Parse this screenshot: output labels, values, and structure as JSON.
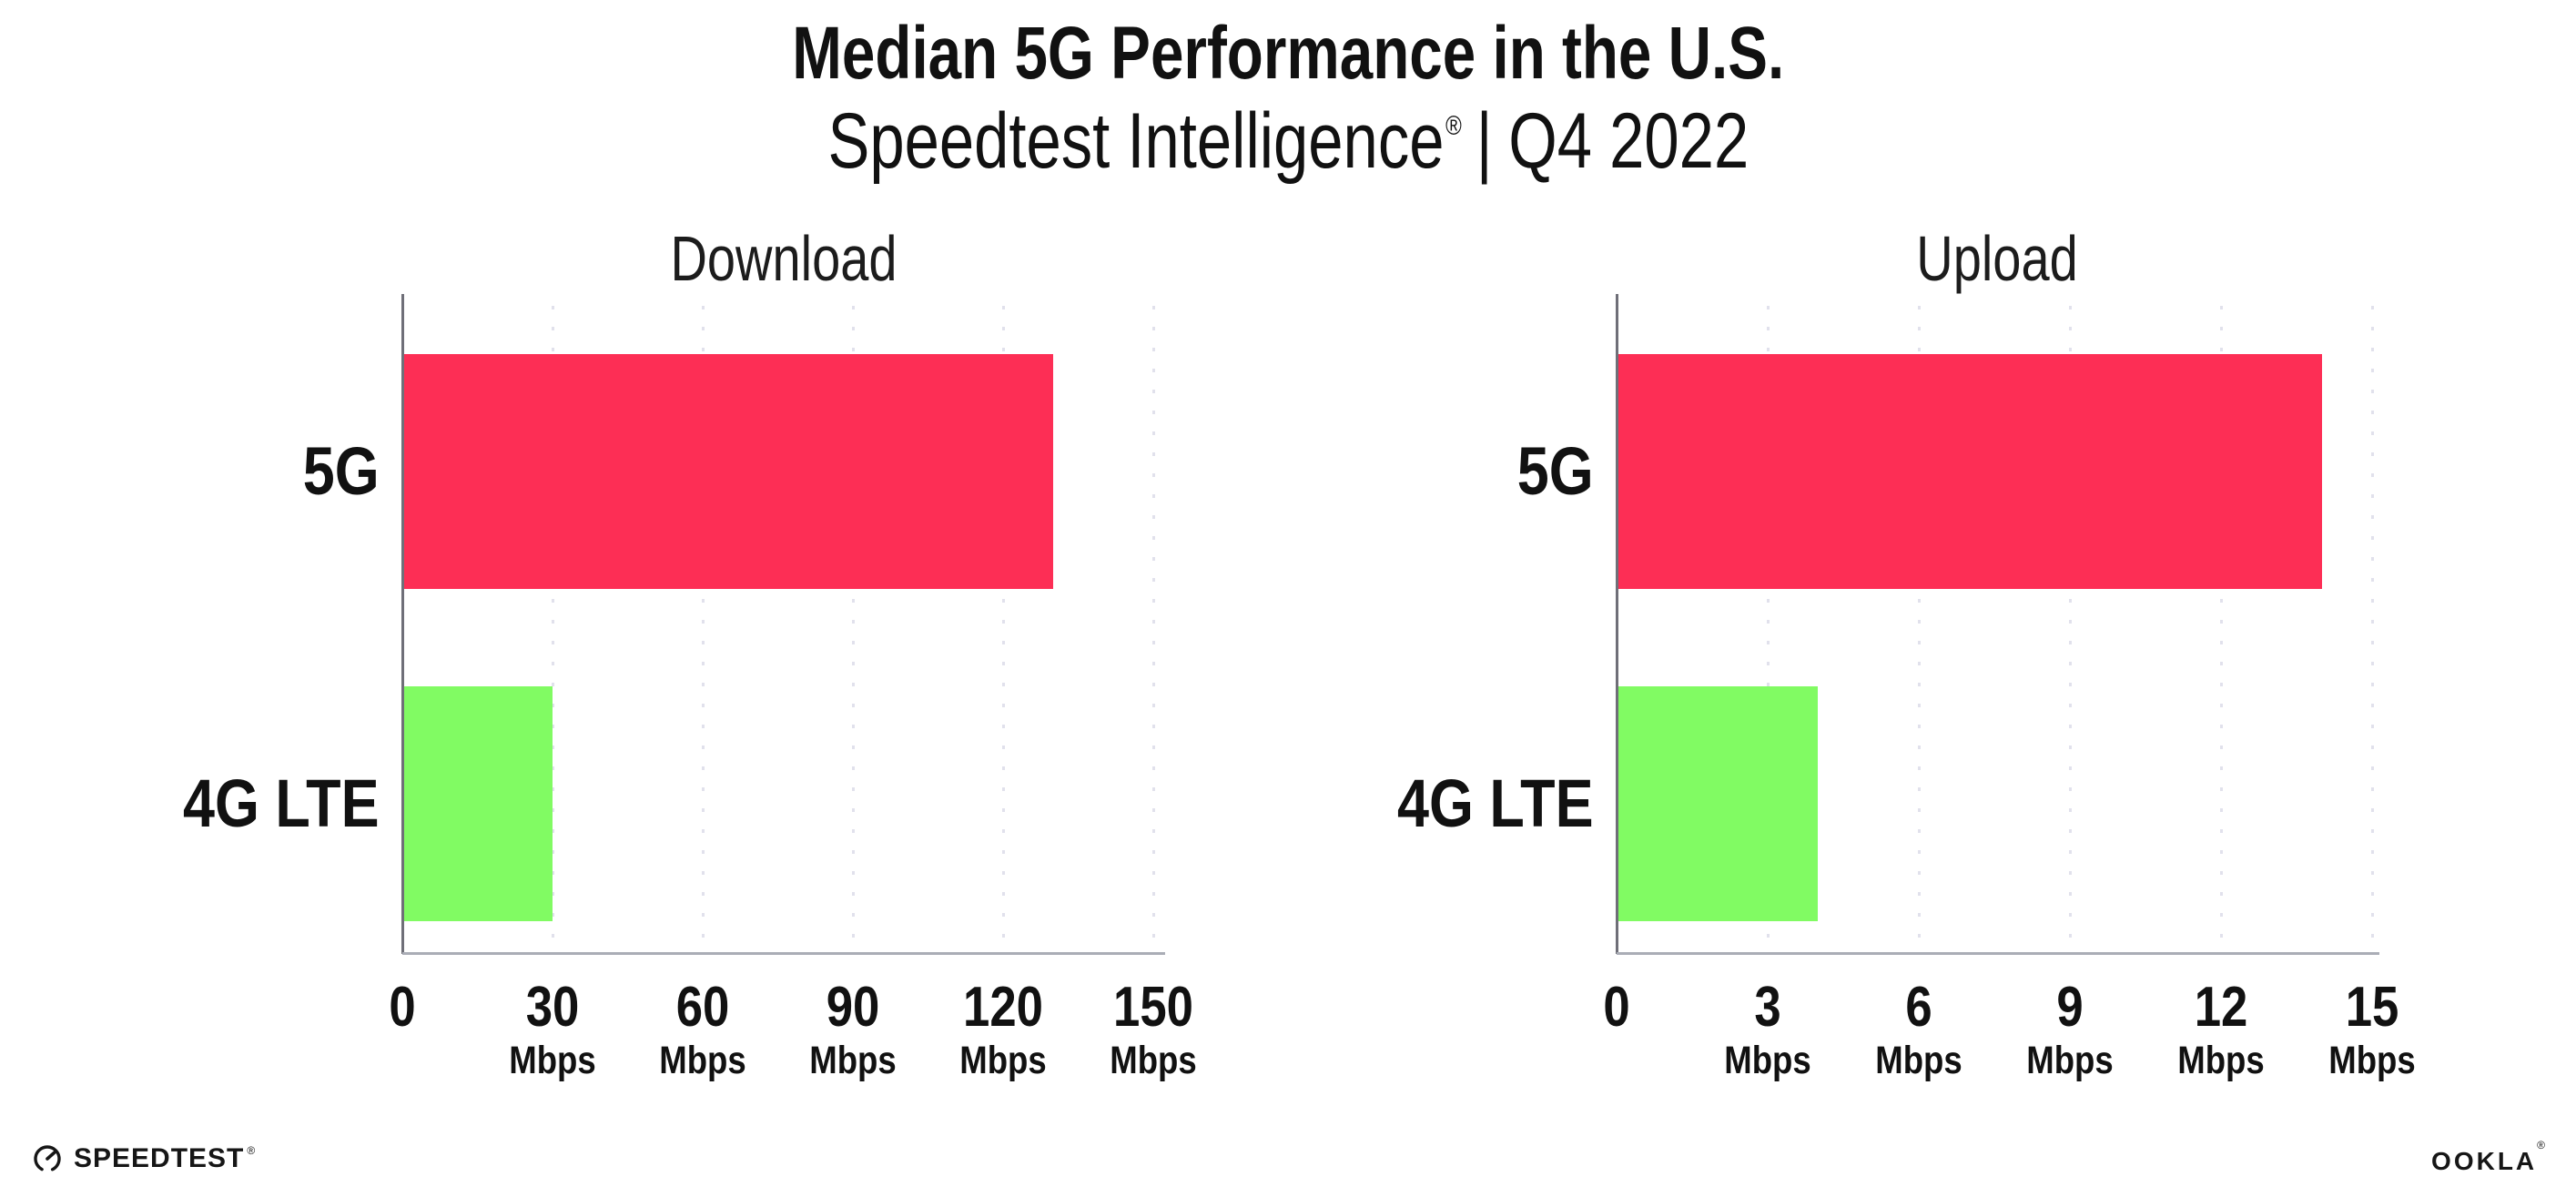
{
  "title": "Median 5G Performance in the U.S.",
  "subtitle": {
    "brand": "Speedtest Intelligence",
    "mark": "®",
    "separator": "|",
    "period": "Q4 2022"
  },
  "colors": {
    "bar_5g": "#FD2E55",
    "bar_4g_lte": "#81FB63",
    "y_axis": "#6f6f78",
    "x_axis": "#aaadb6",
    "grid_dot": "#e1e1ec",
    "text": "#111111"
  },
  "chart_data": [
    {
      "type": "bar",
      "orientation": "horizontal",
      "title": "Download",
      "categories": [
        "5G",
        "4G LTE"
      ],
      "values": [
        130,
        30
      ],
      "unit": "Mbps",
      "xlim": [
        0,
        150
      ],
      "xticks": [
        0,
        30,
        60,
        90,
        120,
        150
      ],
      "grid": "vertical-dotted",
      "legend": "none",
      "bar_colors": [
        "#FD2E55",
        "#81FB63"
      ]
    },
    {
      "type": "bar",
      "orientation": "horizontal",
      "title": "Upload",
      "categories": [
        "5G",
        "4G LTE"
      ],
      "values": [
        14,
        4
      ],
      "unit": "Mbps",
      "xlim": [
        0,
        15
      ],
      "xticks": [
        0,
        3,
        6,
        9,
        12,
        15
      ],
      "grid": "vertical-dotted",
      "legend": "none",
      "bar_colors": [
        "#FD2E55",
        "#81FB63"
      ]
    }
  ],
  "footer": {
    "speedtest_logo": "SPEEDTEST",
    "speedtest_mark": "®",
    "ookla_logo": "OOKLA",
    "ookla_mark": "®"
  }
}
